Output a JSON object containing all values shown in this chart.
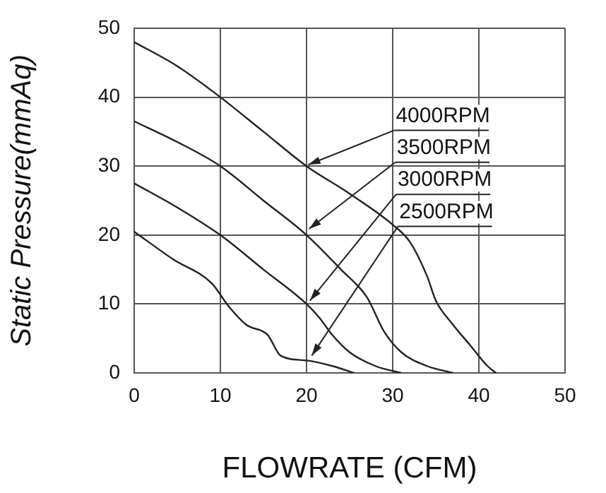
{
  "chart_data": {
    "type": "line",
    "xlabel": "FLOWRATE (CFM)",
    "ylabel": "Static Pressure(mmAq)",
    "xlim": [
      0,
      50
    ],
    "xticks": [
      0,
      10,
      20,
      30,
      40,
      50
    ],
    "ylim": [
      0,
      50
    ],
    "yticks": [
      0,
      10,
      20,
      30,
      40,
      50
    ],
    "grid": true,
    "marker": "none",
    "line_style": "solid",
    "series": [
      {
        "color": "#222222",
        "x": [
          0,
          5,
          10,
          15,
          20,
          25,
          30,
          32,
          34,
          35,
          37,
          39,
          41,
          42
        ],
        "values": [
          48,
          44.5,
          40,
          35,
          30,
          26,
          21.5,
          19,
          14,
          10.5,
          7,
          4,
          1,
          0
        ]
      },
      {
        "color": "#222222",
        "x": [
          0,
          5,
          10,
          15,
          20,
          24,
          27,
          29,
          31,
          34,
          37
        ],
        "values": [
          36.5,
          33.5,
          30,
          25,
          20,
          15,
          11,
          6,
          3,
          1,
          0
        ]
      },
      {
        "color": "#222222",
        "x": [
          0,
          5,
          10,
          15,
          20,
          21.5,
          23,
          25,
          28,
          31
        ],
        "values": [
          27.5,
          24,
          20,
          15,
          10,
          8,
          5.5,
          3,
          1,
          0
        ]
      },
      {
        "color": "#222222",
        "x": [
          0,
          4.5,
          9,
          11,
          13,
          15.5,
          17,
          20,
          23,
          25.5
        ],
        "values": [
          20.5,
          16.5,
          13,
          9.6,
          7,
          5.5,
          2.5,
          1.8,
          1,
          0
        ]
      }
    ],
    "annotations": [
      {
        "text": "4000RPM",
        "x": 20.2,
        "y": 30.2
      },
      {
        "text": "3500RPM",
        "x": 20.3,
        "y": 20.9
      },
      {
        "text": "3000RPM",
        "x": 20.4,
        "y": 10.5
      },
      {
        "text": "2500RPM",
        "x": 20.6,
        "y": 2.5
      }
    ]
  }
}
